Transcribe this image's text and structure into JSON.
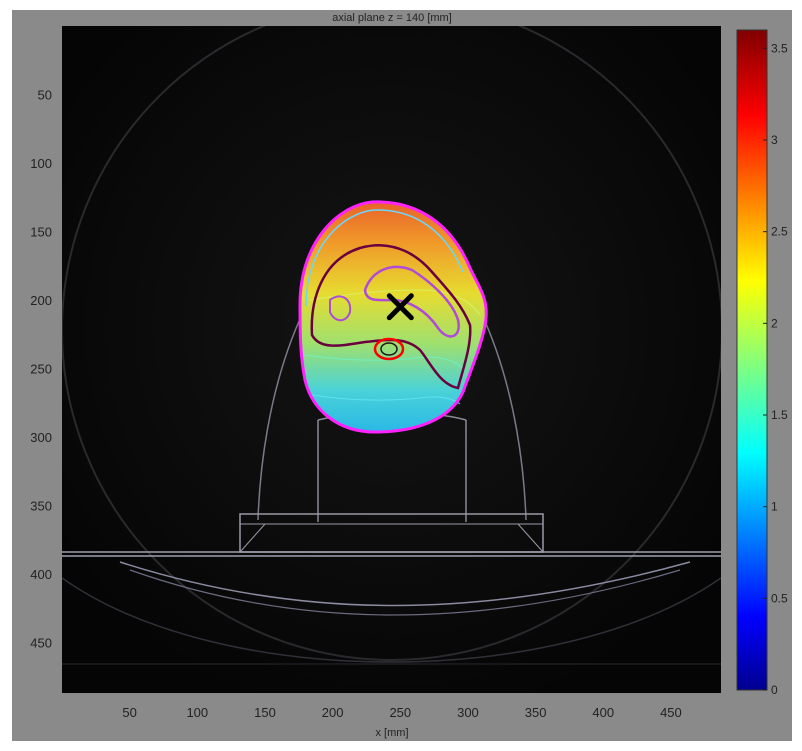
{
  "chart_data": {
    "type": "heatmap",
    "title": "axial plane z = 140 [mm]",
    "xlabel": "x [mm]",
    "ylabel": "",
    "xlim": [
      0,
      487
    ],
    "ylim": [
      0,
      487
    ],
    "x_ticks": [
      50,
      100,
      150,
      200,
      250,
      300,
      350,
      400,
      450
    ],
    "y_ticks": [
      50,
      100,
      150,
      200,
      250,
      300,
      350,
      400,
      450
    ],
    "colorbar": {
      "colormap": "jet",
      "range": [
        0,
        3.6
      ],
      "ticks": [
        0,
        0.5,
        1,
        1.5,
        2,
        2.5,
        3,
        3.5
      ]
    },
    "target_marker": {
      "symbol": "x",
      "x": 250,
      "y": 205
    },
    "colors": {
      "background": "#0a0a0a",
      "frame": "#888888",
      "contour_outer": "#ff22ff",
      "contour_inner": "#b04ad8",
      "contour_dark": "#6a0040",
      "contour_organ": "#ff0000"
    }
  }
}
